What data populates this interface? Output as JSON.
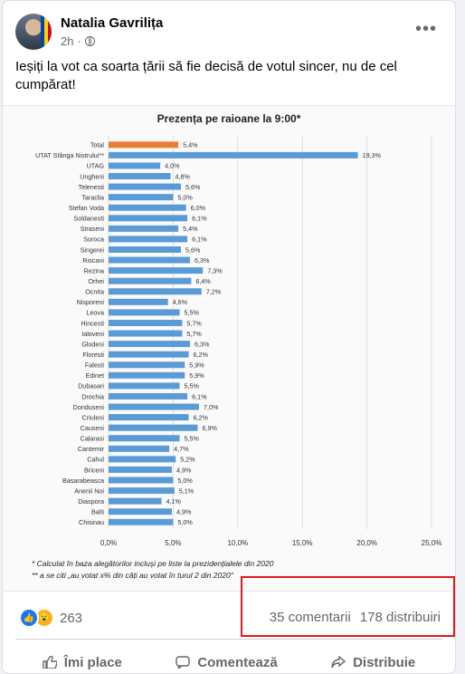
{
  "post": {
    "author": "Natalia Gavrilița",
    "time": "2h",
    "text": "Ieșiți la vot ca soarta țării să fie decisă de votul sincer, nu de cel cumpărat!"
  },
  "chart_data": {
    "type": "bar",
    "orientation": "horizontal",
    "title": "Prezența pe raioane la 9:00*",
    "categories": [
      "Total",
      "UTAT Stânga Nistrului**",
      "UTAG",
      "Ungheni",
      "Telenesti",
      "Taraclia",
      "Stefan Voda",
      "Soldanesti",
      "Straseni",
      "Soroca",
      "Singerei",
      "Riscani",
      "Rezina",
      "Orhei",
      "Ocnita",
      "Nisporeni",
      "Leova",
      "Hincesti",
      "Ialoveni",
      "Glodeni",
      "Floresti",
      "Falesti",
      "Edinet",
      "Dubasari",
      "Drochia",
      "Donduseni",
      "Criuleni",
      "Causeni",
      "Calarasi",
      "Cantemir",
      "Cahul",
      "Briceni",
      "Basarabeasca",
      "Anenii Noi",
      "Diaspora",
      "Balti",
      "Chisinau"
    ],
    "values": [
      5.4,
      19.3,
      4.0,
      4.8,
      5.6,
      5.0,
      6.0,
      6.1,
      5.4,
      6.1,
      5.6,
      6.3,
      7.3,
      6.4,
      7.2,
      4.6,
      5.5,
      5.7,
      5.7,
      6.3,
      6.2,
      5.9,
      5.9,
      5.5,
      6.1,
      7.0,
      6.2,
      6.9,
      5.5,
      4.7,
      5.2,
      4.9,
      5.0,
      5.1,
      4.1,
      4.9,
      5.0
    ],
    "value_labels": [
      "5,4%",
      "19,3%",
      "4,0%",
      "4,8%",
      "5,6%",
      "5,0%",
      "6,0%",
      "6,1%",
      "5,4%",
      "6,1%",
      "5,6%",
      "6,3%",
      "7,3%",
      "6,4%",
      "7,2%",
      "4,6%",
      "5,5%",
      "5,7%",
      "5,7%",
      "6,3%",
      "6,2%",
      "5,9%",
      "5,9%",
      "5,5%",
      "6,1%",
      "7,0%",
      "6,2%",
      "6,9%",
      "5,5%",
      "4,7%",
      "5,2%",
      "4,9%",
      "5,0%",
      "5,1%",
      "4,1%",
      "4,9%",
      "5,0%"
    ],
    "xlim": [
      0,
      25
    ],
    "xticks": [
      "0,0%",
      "5,0%",
      "10,0%",
      "15,0%",
      "20,0%",
      "25,0%"
    ],
    "grid": true,
    "colors": {
      "highlight": "#ed7d31",
      "bar": "#5b9bd5"
    },
    "footnotes": [
      "* Calculat în baza alegătorilor incluși pe liste la prezidențialele din 2020",
      "** a se citi „au votat x% din câți au votat în turul 2 din 2020\""
    ]
  },
  "engagement": {
    "reaction_icons": [
      "like-icon",
      "wow-icon"
    ],
    "reaction_count": "263",
    "comments": "35 comentarii",
    "shares": "178 distribuiri"
  },
  "actions": {
    "like": "Îmi place",
    "comment": "Comentează",
    "share": "Distribuie"
  },
  "colors": {
    "accent": "#1877f2",
    "highlight_box": "#e0191f"
  }
}
